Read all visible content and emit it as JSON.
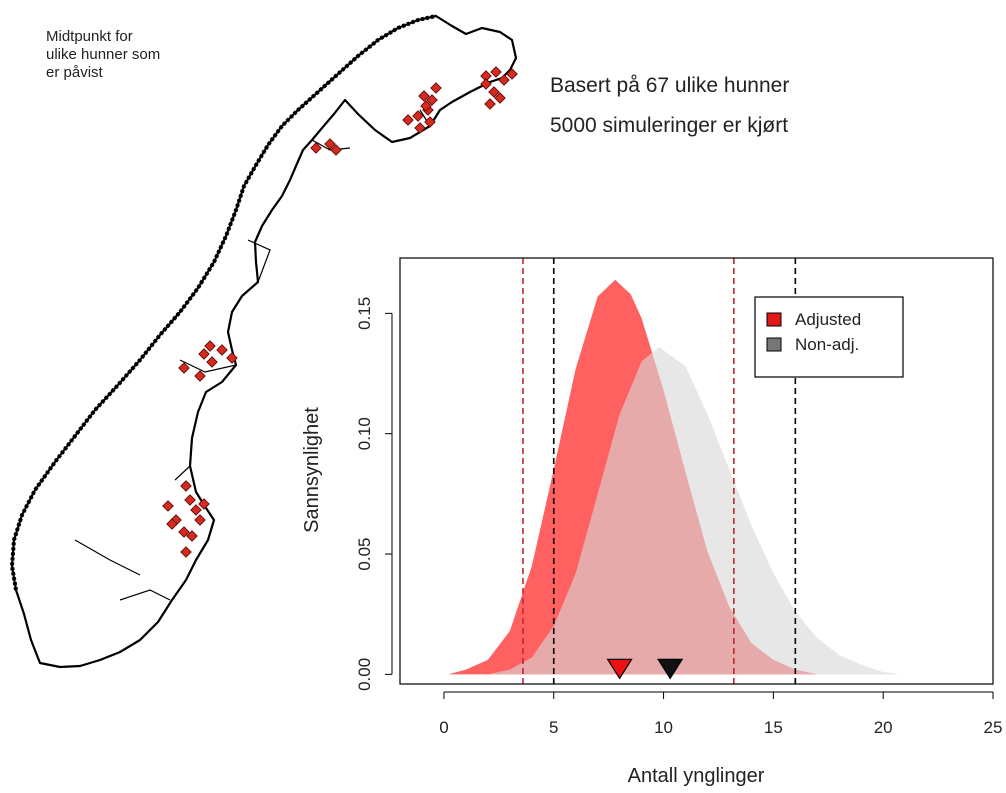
{
  "map": {
    "caption": [
      "Midtpunkt for",
      "ulike hunner som",
      "er påvist"
    ],
    "marker_color": "#d42a20"
  },
  "info": {
    "line1": "Basert på 67 ulike hunner",
    "line2": "5000 simuleringer er kjørt"
  },
  "chart_data": {
    "type": "area",
    "xlabel": "Antall ynglinger",
    "ylabel": "Sannsynlighet",
    "xlim": [
      -2,
      25
    ],
    "ylim": [
      -0.004,
      0.173
    ],
    "xticks": [
      0,
      5,
      10,
      15,
      20,
      25
    ],
    "yticks": [
      0.0,
      0.05,
      0.1,
      0.15
    ],
    "ytick_labels": [
      "0.00",
      "0.05",
      "0.10",
      "0.15"
    ],
    "legend_position": "top-right",
    "series": [
      {
        "name": "Adjusted",
        "color": "#ff6060",
        "x": [
          0.2,
          1,
          2,
          3,
          4,
          5,
          6,
          7,
          7.8,
          8.5,
          9,
          10,
          11,
          12,
          13,
          14,
          15,
          16,
          17
        ],
        "y": [
          0.0,
          0.002,
          0.006,
          0.018,
          0.045,
          0.085,
          0.127,
          0.157,
          0.164,
          0.158,
          0.148,
          0.118,
          0.084,
          0.051,
          0.028,
          0.013,
          0.006,
          0.002,
          0.0
        ],
        "mean": 8.0,
        "ci": [
          3.6,
          13.2
        ]
      },
      {
        "name": "Non-adj.",
        "color": "#d9d9d9",
        "x": [
          2,
          3,
          4,
          5,
          6,
          7,
          8,
          9,
          9.8,
          11,
          12,
          13,
          14,
          15,
          16,
          17,
          18,
          19,
          20,
          20.8
        ],
        "y": [
          0.0,
          0.002,
          0.007,
          0.02,
          0.042,
          0.075,
          0.108,
          0.13,
          0.136,
          0.128,
          0.108,
          0.085,
          0.062,
          0.042,
          0.026,
          0.015,
          0.008,
          0.004,
          0.001,
          0.0
        ],
        "mean": 10.3,
        "ci": [
          5.0,
          16.0
        ]
      }
    ],
    "overlap_color": "#d49898",
    "ci_line_colors": [
      "#c0282d",
      "#000000"
    ]
  }
}
